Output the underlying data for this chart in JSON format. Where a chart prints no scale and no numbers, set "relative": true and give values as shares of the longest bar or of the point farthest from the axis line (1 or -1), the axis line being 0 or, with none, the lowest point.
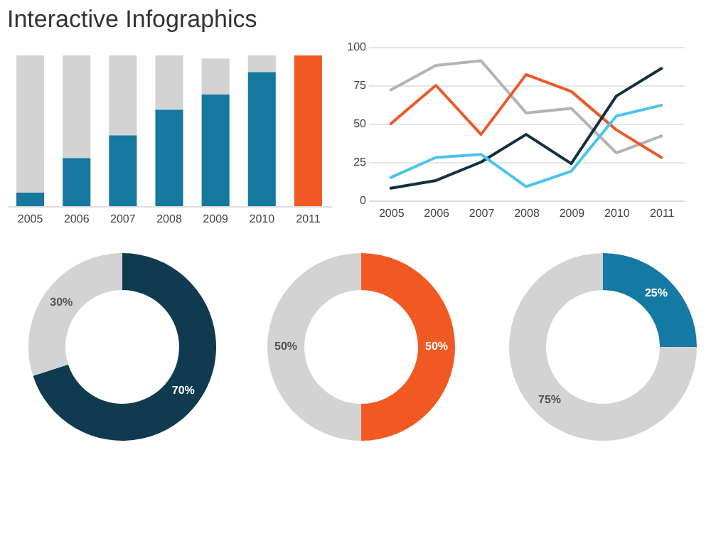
{
  "chart_data": [
    {
      "type": "bar",
      "title": "Interactive Infographics",
      "stacked": true,
      "relative": true,
      "categories": [
        "2005",
        "2006",
        "2007",
        "2008",
        "2009",
        "2010",
        "2011"
      ],
      "series": [
        {
          "colors": [
            "#14789f",
            "#14789f",
            "#14789f",
            "#14789f",
            "#14789f",
            "#14789f",
            "#f05a22"
          ],
          "values": [
            0.09,
            0.32,
            0.47,
            0.64,
            0.74,
            0.89,
            1.0
          ]
        },
        {
          "color": "#d3d3d3",
          "values": [
            0.91,
            0.68,
            0.53,
            0.36,
            0.24,
            0.11,
            0
          ]
        }
      ]
    },
    {
      "type": "line",
      "categories": [
        "2005",
        "2006",
        "2007",
        "2008",
        "2009",
        "2010",
        "2011"
      ],
      "ylim": [
        0,
        100
      ],
      "yticks": [
        0,
        25,
        50,
        75,
        100
      ],
      "grid": "y",
      "marker": "none",
      "line_style": "solid",
      "series": [
        {
          "color": "#b3b3b3",
          "values": [
            72,
            88,
            91,
            57,
            60,
            31,
            42
          ]
        },
        {
          "color": "#ea5a2a",
          "values": [
            50,
            75,
            43,
            82,
            71,
            46,
            28
          ]
        },
        {
          "color": "#13303f",
          "values": [
            8,
            13,
            25,
            43,
            24,
            68,
            86
          ]
        },
        {
          "color": "#4cc3ee",
          "values": [
            15,
            28,
            30,
            9,
            19,
            55,
            62
          ]
        }
      ]
    },
    {
      "type": "donut",
      "categories": [
        null,
        null
      ],
      "values": [
        70,
        30
      ],
      "colors": [
        "#0f3a50",
        "#d3d3d3"
      ],
      "value_labels": [
        "70%",
        "30%"
      ]
    },
    {
      "type": "donut",
      "categories": [
        null,
        null
      ],
      "values": [
        50,
        50
      ],
      "colors": [
        "#f05a22",
        "#d3d3d3"
      ],
      "value_labels": [
        "50%",
        "50%"
      ]
    },
    {
      "type": "donut",
      "categories": [
        null,
        null
      ],
      "values": [
        25,
        75
      ],
      "colors": [
        "#1479a3",
        "#d3d3d3"
      ],
      "value_labels": [
        "25%",
        "75%"
      ]
    }
  ]
}
